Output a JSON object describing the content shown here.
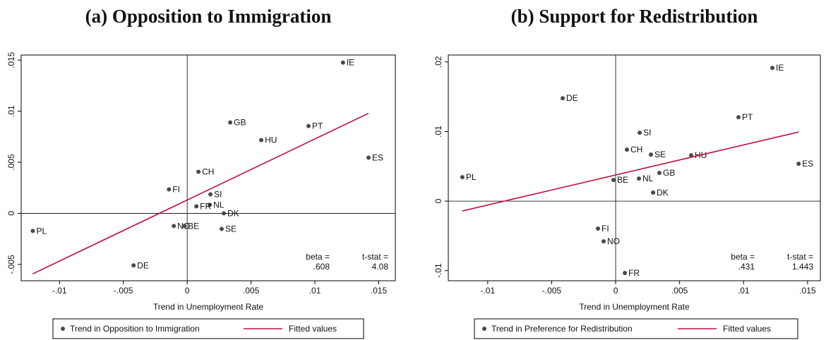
{
  "chart_data": [
    {
      "type": "scatter",
      "title": "(a) Opposition to Immigration",
      "x_label": "Trend in Unemployment Rate",
      "xlim": [
        -0.013,
        0.0163
      ],
      "ylim": [
        -0.0066,
        0.0155
      ],
      "xticks": [
        {
          "value": -0.01,
          "label": "-.01"
        },
        {
          "value": -0.005,
          "label": "-.005"
        },
        0,
        {
          "value": 0.005,
          "label": ".005"
        },
        {
          "value": 0.01,
          "label": ".01"
        },
        {
          "value": 0.015,
          "label": ".015"
        }
      ],
      "yticks": [
        {
          "value": -0.005,
          "label": "-.005"
        },
        0,
        {
          "value": 0.005,
          "label": ".005"
        },
        {
          "value": 0.01,
          "label": ".01"
        },
        {
          "value": 0.015,
          "label": ".015"
        }
      ],
      "annotations": [
        "beta =",
        ".608",
        "t-stat =",
        "4.08"
      ],
      "series": [
        {
          "name": "Trend in Opposition to Immigration",
          "mode": "markers",
          "color": "#4a4a4a",
          "point_labels": [
            "IE",
            "GB",
            "PT",
            "HU",
            "ES",
            "CH",
            "FI",
            "SI",
            "NL",
            "FR",
            "DK",
            "NO",
            "BE",
            "SE",
            "PL",
            "DE"
          ],
          "x": [
            0.0122,
            0.00337,
            0.0095,
            0.0058,
            0.0142,
            0.00088,
            -0.00143,
            0.00182,
            0.00177,
            0.00072,
            0.00287,
            -0.00105,
            -0.00022,
            0.0027,
            -0.01209,
            -0.0042
          ],
          "values": [
            0.01476,
            0.0089,
            0.00855,
            0.00717,
            0.00545,
            0.00407,
            0.00234,
            0.00186,
            0.00083,
            0.00069,
            0,
            -0.00124,
            -0.00124,
            -0.00152,
            -0.00172,
            -0.0051
          ]
        },
        {
          "name": "Fitted values",
          "mode": "line",
          "color": "#c0103c",
          "x": [
            -0.0121,
            0.0142
          ],
          "values": [
            -0.00593,
            0.00979
          ]
        }
      ]
    },
    {
      "type": "scatter",
      "title": "(b) Support for Redistribution",
      "x_label": "Trend in Unemployment Rate",
      "xlim": [
        -0.01308,
        0.016
      ],
      "ylim": [
        -0.01145,
        0.021
      ],
      "xticks": [
        {
          "value": -0.01,
          "label": "-.01"
        },
        {
          "value": -0.005,
          "label": "-.005"
        },
        0,
        {
          "value": 0.005,
          "label": ".005"
        },
        {
          "value": 0.01,
          "label": ".01"
        },
        {
          "value": 0.015,
          "label": ".015"
        }
      ],
      "yticks": [
        {
          "value": -0.01,
          "label": "-.01"
        },
        0,
        {
          "value": 0.01,
          "label": ".01"
        },
        {
          "value": 0.02,
          "label": ".02"
        }
      ],
      "annotations": [
        "beta =",
        ".431",
        "t-stat =",
        "1.443"
      ],
      "series": [
        {
          "name": "Trend in Preference for Redistribution",
          "mode": "markers",
          "color": "#4a4a4a",
          "point_labels": [
            "IE",
            "DE",
            "PT",
            "SI",
            "CH",
            "SE",
            "HU",
            "ES",
            "GB",
            "PL",
            "BE",
            "NL",
            "DK",
            "FI",
            "NO",
            "FR"
          ],
          "x": [
            0.01225,
            -0.00414,
            0.0096,
            0.00188,
            0.00088,
            0.00276,
            0.0059,
            0.0143,
            0.00342,
            -0.01198,
            -0.00017,
            0.00182,
            0.00293,
            -0.00138,
            -0.00094,
            0.00072
          ],
          "values": [
            0.01915,
            0.01479,
            0.01206,
            0.00983,
            0.0074,
            0.00669,
            0.00659,
            0.00537,
            0.00405,
            0.00344,
            0.00304,
            0.00324,
            0.00122,
            -0.00395,
            -0.00578,
            -0.01033
          ]
        },
        {
          "name": "Fitted values",
          "mode": "line",
          "color": "#c0103c",
          "x": [
            -0.01198,
            0.0143
          ],
          "values": [
            -0.00142,
            0.00993
          ]
        }
      ]
    }
  ]
}
